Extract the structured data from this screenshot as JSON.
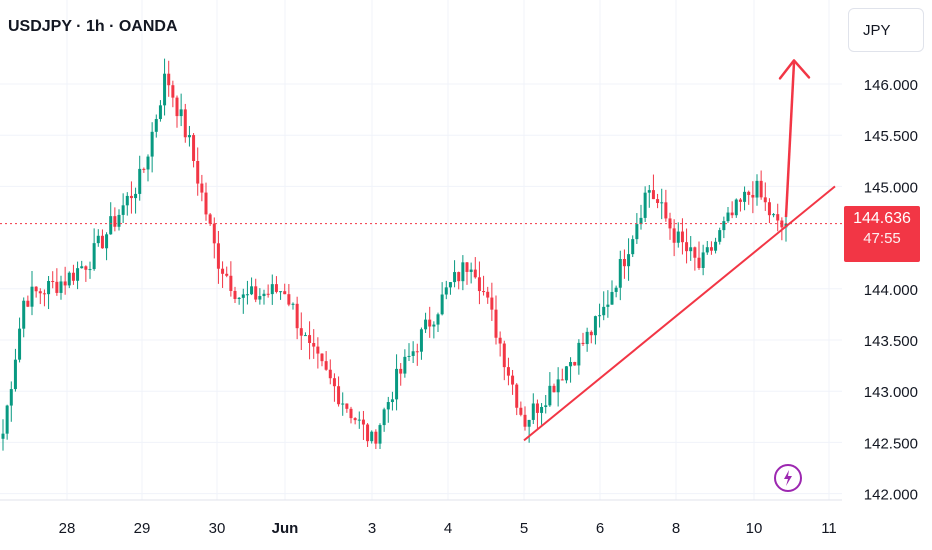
{
  "header": {
    "title": "USDJPY · 1h · OANDA"
  },
  "price_scale": {
    "currency": "JPY"
  },
  "last_price": {
    "value": "144.636",
    "countdown": "47:55"
  },
  "colors": {
    "up": "#089981",
    "down": "#f23645",
    "annotation": "#f23645",
    "grid": "#f0f3fa",
    "text": "#131722",
    "bolt": "#9c27b0"
  },
  "icons": {
    "bolt": "lightning-bolt-icon"
  },
  "chart_data": {
    "type": "candlestick",
    "instrument": "USDJPY",
    "timeframe": "1h",
    "source": "OANDA",
    "x_tick_labels": [
      "28",
      "29",
      "30",
      "Jun",
      "3",
      "4",
      "5",
      "6",
      "8",
      "10",
      "11"
    ],
    "y_tick_labels": [
      "146.000",
      "145.500",
      "145.000",
      "144.000",
      "143.500",
      "143.000",
      "142.500",
      "142.000"
    ],
    "ylim": [
      141.9,
      146.8
    ],
    "last_price": 144.636,
    "approx_close_path": [
      {
        "label": "27",
        "close": 142.4
      },
      {
        "label": "27",
        "close": 143.9
      },
      {
        "label": "28",
        "close": 144.1
      },
      {
        "label": "28",
        "close": 144.3
      },
      {
        "label": "29",
        "close": 145.1
      },
      {
        "label": "29",
        "close": 146.1
      },
      {
        "label": "29",
        "close": 145.4
      },
      {
        "label": "30",
        "close": 144.3
      },
      {
        "label": "30",
        "close": 143.9
      },
      {
        "label": "Jun",
        "close": 144.0
      },
      {
        "label": "Jun",
        "close": 143.4
      },
      {
        "label": "3",
        "close": 142.5
      },
      {
        "label": "3",
        "close": 143.1
      },
      {
        "label": "4",
        "close": 144.0
      },
      {
        "label": "4",
        "close": 144.3
      },
      {
        "label": "4",
        "close": 143.6
      },
      {
        "label": "5",
        "close": 142.7
      },
      {
        "label": "5",
        "close": 143.0
      },
      {
        "label": "6",
        "close": 143.7
      },
      {
        "label": "6",
        "close": 144.3
      },
      {
        "label": "6",
        "close": 145.0
      },
      {
        "label": "8",
        "close": 144.5
      },
      {
        "label": "8",
        "close": 144.2
      },
      {
        "label": "8",
        "close": 144.6
      },
      {
        "label": "10",
        "close": 145.0
      },
      {
        "label": "10",
        "close": 144.6
      }
    ],
    "annotations": [
      {
        "type": "trendline",
        "from": {
          "label": "5",
          "price": 142.52
        },
        "to": {
          "label": "11",
          "price": 145.0
        }
      },
      {
        "type": "arrow",
        "from": {
          "label": "10",
          "price": 144.7
        },
        "to": {
          "label": "10",
          "price": 146.25
        }
      }
    ],
    "grid": true
  }
}
